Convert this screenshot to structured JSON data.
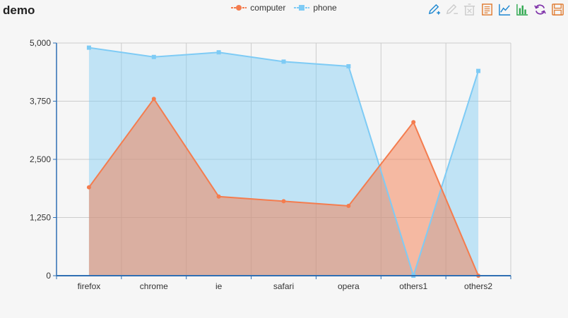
{
  "title": "demo",
  "legend": [
    {
      "label": "computer",
      "color": "#f47c4e"
    },
    {
      "label": "phone",
      "color": "#7ecbf5"
    }
  ],
  "toolbox": [
    {
      "name": "mark-icon",
      "color": "#1d87d1"
    },
    {
      "name": "mark-undo-icon",
      "color": "#cccccc"
    },
    {
      "name": "mark-clear-icon",
      "color": "#cccccc"
    },
    {
      "name": "data-view-icon",
      "color": "#e07a2e"
    },
    {
      "name": "line-chart-icon",
      "color": "#1d87d1"
    },
    {
      "name": "bar-chart-icon",
      "color": "#2fa84f"
    },
    {
      "name": "restore-icon",
      "color": "#7d2fa8"
    },
    {
      "name": "save-image-icon",
      "color": "#e07a2e"
    }
  ],
  "chart_data": {
    "type": "area",
    "categories": [
      "firefox",
      "chrome",
      "ie",
      "safari",
      "opera",
      "others1",
      "others2"
    ],
    "series": [
      {
        "name": "computer",
        "values": [
          1900,
          3800,
          1700,
          1600,
          1500,
          3300,
          0
        ],
        "color": "#f47c4e"
      },
      {
        "name": "phone",
        "values": [
          4900,
          4700,
          4800,
          4600,
          4500,
          0,
          4400
        ],
        "color": "#7ecbf5"
      }
    ],
    "yticks": [
      "0",
      "1,250",
      "2,500",
      "3,750",
      "5,000"
    ],
    "ylim": [
      0,
      5000
    ],
    "grid": true,
    "legend_position": "top-center"
  }
}
